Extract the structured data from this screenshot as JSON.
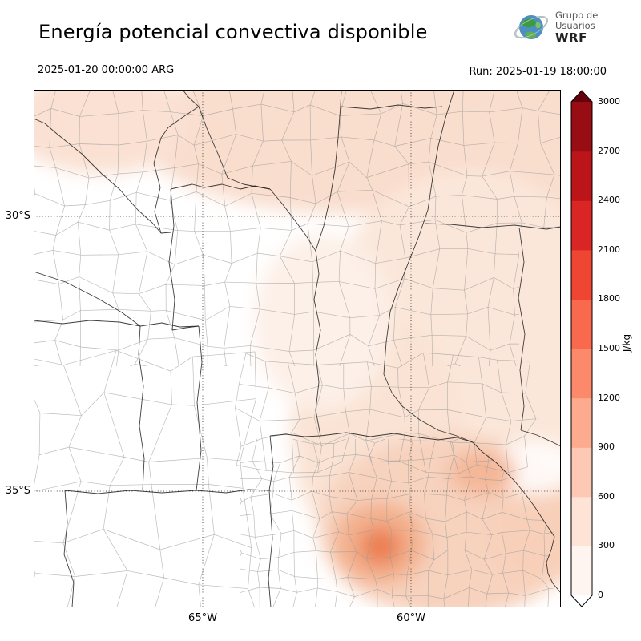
{
  "header": {
    "title": "Energía potencial convectiva disponible",
    "logo": {
      "line1": "Grupo de",
      "line2": "Usuarios",
      "line3": "WRF"
    },
    "valid_time": "2025-01-20 00:00:00 ARG",
    "run_time": "Run: 2025-01-19 18:00:00"
  },
  "map": {
    "y_axis_labels": [
      "30°S",
      "35°S"
    ],
    "x_axis_labels": [
      "65°W",
      "60°W"
    ]
  },
  "colorbar": {
    "unit": "J/kg",
    "ticks": [
      "0",
      "300",
      "600",
      "900",
      "1200",
      "1500",
      "1800",
      "2100",
      "2400",
      "2700",
      "3000"
    ],
    "under_color": "#ffffff",
    "over_color": "#67000d",
    "colors": [
      "#fff5f0",
      "#fee3d7",
      "#fdc9b4",
      "#fcab8f",
      "#fc8a6a",
      "#f9694d",
      "#ef4533",
      "#d92523",
      "#bb151a",
      "#980c13"
    ]
  }
}
